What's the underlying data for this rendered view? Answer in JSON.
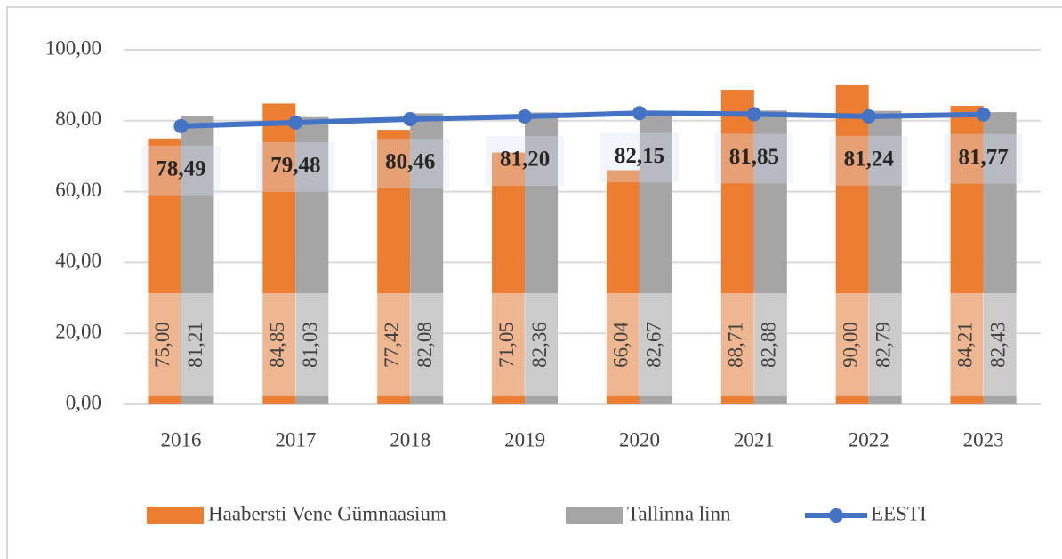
{
  "chart_data": {
    "type": "bar",
    "categories": [
      "2016",
      "2017",
      "2018",
      "2019",
      "2020",
      "2021",
      "2022",
      "2023"
    ],
    "series": [
      {
        "name": "Haabersti Vene Gümnaasium",
        "color": "#ed7d31",
        "values": [
          75.0,
          84.85,
          77.42,
          71.05,
          66.04,
          88.71,
          90.0,
          84.21
        ],
        "value_labels": [
          "75,00",
          "84,85",
          "77,42",
          "71,05",
          "66,04",
          "88,71",
          "90,00",
          "84,21"
        ]
      },
      {
        "name": "Tallinna linn",
        "color": "#a5a5a5",
        "values": [
          81.21,
          81.03,
          82.08,
          82.36,
          82.67,
          82.88,
          82.79,
          82.43
        ],
        "value_labels": [
          "81,21",
          "81,03",
          "82,08",
          "82,36",
          "82,67",
          "82,88",
          "82,79",
          "82,43"
        ]
      },
      {
        "name": "EESTI",
        "color": "#4472c4",
        "type": "line",
        "values": [
          78.49,
          79.48,
          80.46,
          81.2,
          82.15,
          81.85,
          81.24,
          81.77
        ],
        "value_labels": [
          "78,49",
          "79,48",
          "80,46",
          "81,20",
          "82,15",
          "81,85",
          "81,24",
          "81,77"
        ]
      }
    ],
    "ylim": [
      0,
      100
    ],
    "yticks": [
      {
        "value": 0,
        "label": "0,00"
      },
      {
        "value": 20,
        "label": "20,00"
      },
      {
        "value": 40,
        "label": "40,00"
      },
      {
        "value": 60,
        "label": "60,00"
      },
      {
        "value": 80,
        "label": "80,00"
      },
      {
        "value": 100,
        "label": "100,00"
      }
    ],
    "grid": true
  }
}
